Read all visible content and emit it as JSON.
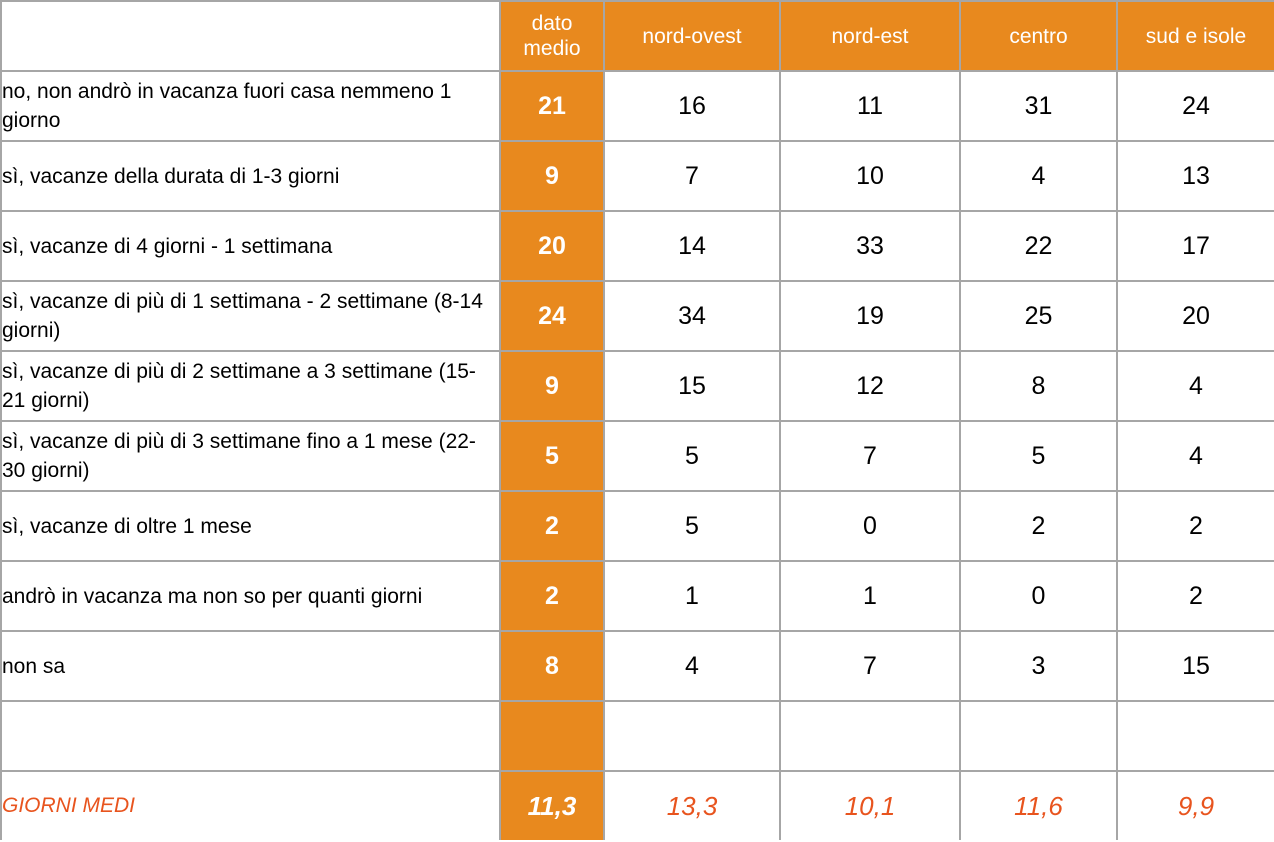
{
  "chart_data": {
    "type": "table",
    "columns": [
      "dato medio",
      "nord-ovest",
      "nord-est",
      "centro",
      "sud e isole"
    ],
    "rows": [
      {
        "label": "no, non andrò in vacanza fuori casa nemmeno 1 giorno",
        "values": [
          "21",
          "16",
          "11",
          "31",
          "24"
        ]
      },
      {
        "label": "sì, vacanze della durata di 1-3 giorni",
        "values": [
          "9",
          "7",
          "10",
          "4",
          "13"
        ]
      },
      {
        "label": "sì, vacanze di 4 giorni - 1 settimana",
        "values": [
          "20",
          "14",
          "33",
          "22",
          "17"
        ]
      },
      {
        "label": "sì, vacanze di più di 1 settimana - 2 settimane (8-14 giorni)",
        "values": [
          "24",
          "34",
          "19",
          "25",
          "20"
        ]
      },
      {
        "label": "sì, vacanze di più di 2 settimane a 3 settimane (15-21 giorni)",
        "values": [
          "9",
          "15",
          "12",
          "8",
          "4"
        ]
      },
      {
        "label": "sì, vacanze di più di 3 settimane fino a 1 mese (22-30 giorni)",
        "values": [
          "5",
          "5",
          "7",
          "5",
          "4"
        ]
      },
      {
        "label": "sì, vacanze di oltre 1 mese",
        "values": [
          "2",
          "5",
          "0",
          "2",
          "2"
        ]
      },
      {
        "label": "andrò in vacanza ma non so per quanti giorni",
        "values": [
          "2",
          "1",
          "1",
          "0",
          "2"
        ]
      },
      {
        "label": "non sa",
        "values": [
          "8",
          "4",
          "7",
          "3",
          "15"
        ]
      },
      {
        "label": "",
        "values": [
          "",
          "",
          "",
          "",
          ""
        ]
      }
    ],
    "total": {
      "label": "GIORNI MEDI",
      "values": [
        "11,3",
        "13,3",
        "10,1",
        "11,6",
        "9,9"
      ]
    }
  },
  "colors": {
    "accent": "#e8891e",
    "total_text": "#e8541e",
    "grid": "#a6a6a6"
  }
}
